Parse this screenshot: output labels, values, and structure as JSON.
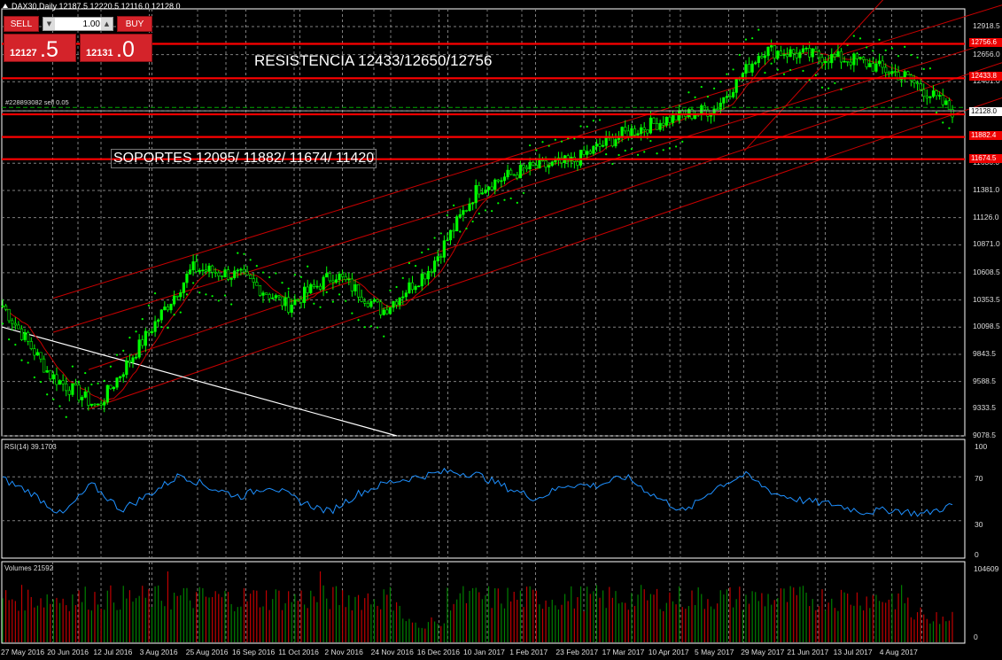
{
  "window": {
    "symbol_line": "DAX30,Daily  12187.5 12220.5 12116.0 12128.0",
    "symbol": "DAX30",
    "timeframe": "Daily",
    "ohlc": {
      "open": "12187.5",
      "high": "12220.5",
      "low": "12116.0",
      "close": "12128.0"
    }
  },
  "trade_panel": {
    "sell_label": "SELL",
    "buy_label": "BUY",
    "lot_value": "1.00",
    "sell_price_small": "12127",
    "sell_price_big": ".5",
    "buy_price_small": "12131",
    "buy_price_big": ".0"
  },
  "annotations": {
    "resistance": "RESISTENCIA 12433/12650/12756",
    "supports": "SOPORTES 12095/  11882/  11674/  11420",
    "order_label": "#228893082 sell 0.05"
  },
  "colors": {
    "background": "#000000",
    "grid": "#7f7f7f",
    "bull_candle": "#00ff00",
    "bear_candle": "#00aa00",
    "level_lines": "#ff0000",
    "channel_lines": "#c80000",
    "sar_dots": "#00ff00",
    "ma_line": "#c80000",
    "rsi_line": "#1e90ff",
    "volume_up": "#008000",
    "volume_down": "#c00000",
    "trendline": "#ffffff"
  },
  "price_axis": {
    "labels": [
      "12918.5",
      "12656.0",
      "12401.0",
      "12128.0",
      "11636.0",
      "11381.0",
      "11126.0",
      "10871.0",
      "10608.5",
      "10353.5",
      "10098.5",
      "9843.5",
      "9588.5",
      "9333.5",
      "9078.5"
    ],
    "tags": [
      {
        "value": "12756.6",
        "style": "red"
      },
      {
        "value": "12433.8",
        "style": "red"
      },
      {
        "value": "12128.0",
        "style": "white"
      },
      {
        "value": "11882.4",
        "style": "red"
      },
      {
        "value": "11674.5",
        "style": "red"
      }
    ]
  },
  "rsi": {
    "label": "RSI(14) 39.1703",
    "axis": [
      "100",
      "70",
      "30",
      "0"
    ]
  },
  "volumes": {
    "label": "Volumes 21592",
    "axis": [
      "104609",
      "0"
    ]
  },
  "time_axis": [
    "27 May 2016",
    "20 Jun 2016",
    "12 Jul 2016",
    "3 Aug 2016",
    "25 Aug 2016",
    "16 Sep 2016",
    "11 Oct 2016",
    "2 Nov 2016",
    "24 Nov 2016",
    "16 Dec 2016",
    "10 Jan 2017",
    "1 Feb 2017",
    "23 Feb 2017",
    "17 Mar 2017",
    "10 Apr 2017",
    "5 May 2017",
    "29 May 2017",
    "21 Jun 2017",
    "13 Jul 2017",
    "4 Aug 2017"
  ],
  "chart_data": {
    "type": "candlestick",
    "title": "DAX30, Daily",
    "x_range": [
      "27 May 2016",
      "4 Aug 2017"
    ],
    "y_range": [
      9078.5,
      13050
    ],
    "horizontal_levels": [
      12756.6,
      12433.8,
      12095,
      11882.4,
      11674.5
    ],
    "price_path_keypoints": [
      {
        "date": "27 May 2016",
        "close": 10300
      },
      {
        "date": "20 Jun 2016",
        "close": 9650
      },
      {
        "date": "24 Jun 2016",
        "close": 9350
      },
      {
        "date": "12 Jul 2016",
        "close": 10000
      },
      {
        "date": "3 Aug 2016",
        "close": 10650
      },
      {
        "date": "25 Aug 2016",
        "close": 10580
      },
      {
        "date": "16 Sep 2016",
        "close": 10300
      },
      {
        "date": "11 Oct 2016",
        "close": 10600
      },
      {
        "date": "2 Nov 2016",
        "close": 10250
      },
      {
        "date": "24 Nov 2016",
        "close": 10650
      },
      {
        "date": "16 Dec 2016",
        "close": 11400
      },
      {
        "date": "10 Jan 2017",
        "close": 11580
      },
      {
        "date": "1 Feb 2017",
        "close": 11650
      },
      {
        "date": "23 Feb 2017",
        "close": 11900
      },
      {
        "date": "17 Mar 2017",
        "close": 12050
      },
      {
        "date": "10 Apr 2017",
        "close": 12150
      },
      {
        "date": "5 May 2017",
        "close": 12700
      },
      {
        "date": "29 May 2017",
        "close": 12650
      },
      {
        "date": "21 Jun 2017",
        "close": 12600
      },
      {
        "date": "13 Jul 2017",
        "close": 12450
      },
      {
        "date": "4 Aug 2017",
        "close": 12128
      }
    ],
    "rsi_keypoints": [
      68,
      55,
      35,
      63,
      40,
      55,
      72,
      60,
      52,
      62,
      48,
      38,
      55,
      65,
      70,
      75,
      72,
      60,
      50,
      63,
      62,
      70,
      52,
      38,
      60,
      72,
      55,
      48,
      45,
      38,
      40,
      36,
      44
    ]
  }
}
